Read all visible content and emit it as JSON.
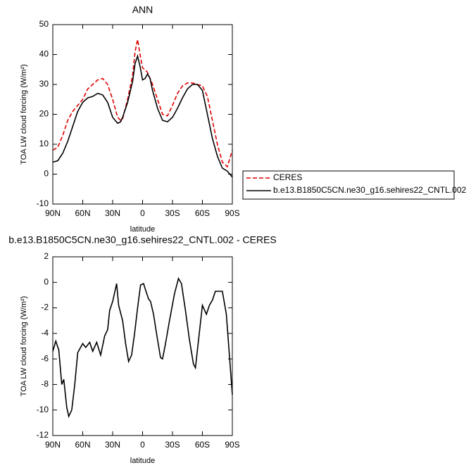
{
  "chart_data": [
    {
      "type": "line",
      "title": "ANN",
      "x_label": "latitude",
      "y_label": "TOA LW cloud forcing (W/m²)",
      "x": [
        90,
        85,
        80,
        75,
        70,
        65,
        60,
        55,
        50,
        45,
        40,
        35,
        30,
        25,
        22,
        20,
        15,
        10,
        7.5,
        5,
        2.5,
        0,
        -2.5,
        -5,
        -7.5,
        -10,
        -15,
        -20,
        -25,
        -30,
        -35,
        -40,
        -45,
        -50,
        -55,
        -60,
        -65,
        -70,
        -75,
        -80,
        -85,
        -90
      ],
      "series": [
        {
          "name": "CERES",
          "color": "#e00000",
          "line_style": "dashed",
          "values": [
            8,
            9,
            13,
            18,
            21,
            23,
            25,
            28.5,
            30,
            31.5,
            32,
            30,
            25,
            19,
            18,
            18.5,
            25,
            33,
            41,
            45,
            40,
            35.5,
            35,
            34,
            32,
            30,
            25,
            20,
            19.5,
            23,
            27,
            29.5,
            30.5,
            30.5,
            30,
            29.5,
            26,
            18,
            10,
            4,
            2.5,
            8
          ]
        },
        {
          "name": "b.e13.B1850C5CN.ne30_g16.sehires22_CNTL.002",
          "color": "#000000",
          "line_style": "solid",
          "values": [
            4,
            4.5,
            7,
            11,
            16,
            21,
            24,
            25.5,
            26,
            27,
            26.5,
            24,
            19,
            17,
            17.5,
            19,
            24,
            31,
            37,
            39.5,
            36,
            31.5,
            32,
            33.5,
            32,
            28,
            22,
            18,
            17.5,
            19,
            22,
            25.5,
            28.5,
            30,
            30,
            28,
            20,
            12,
            6,
            2,
            1,
            -1
          ]
        }
      ],
      "xlim": [
        90,
        -90
      ],
      "xticks": [
        {
          "value": 90,
          "label": "90N"
        },
        {
          "value": 60,
          "label": "60N"
        },
        {
          "value": 30,
          "label": "30N"
        },
        0,
        {
          "value": -30,
          "label": "30S"
        },
        {
          "value": -60,
          "label": "60S"
        },
        {
          "value": -90,
          "label": "90S"
        }
      ],
      "ylim": [
        -10,
        50
      ],
      "yticks": [
        -10,
        0,
        10,
        20,
        30,
        40,
        50
      ],
      "legend": "right"
    },
    {
      "type": "line",
      "title": "b.e13.B1850C5CN.ne30_g16.sehires22_CNTL.002 - CERES",
      "x_label": "latitude",
      "y_label": "TOA LW cloud forcing (W/m²)",
      "x": [
        90,
        87,
        84,
        81,
        79,
        76,
        74,
        71,
        68,
        65,
        60,
        57,
        53,
        50,
        46,
        42,
        38,
        35,
        33,
        30,
        26,
        24,
        20,
        17,
        14,
        11,
        8,
        5,
        2,
        -1,
        -3,
        -6,
        -8,
        -11,
        -14,
        -18,
        -20,
        -23,
        -27,
        -32,
        -36,
        -39,
        -43,
        -47,
        -51,
        -53,
        -58,
        -60,
        -64,
        -67,
        -70,
        -73,
        -76,
        -80,
        -84,
        -90
      ],
      "series": [
        {
          "name": null,
          "color": "#000000",
          "line_style": "solid",
          "values": [
            -5.4,
            -4.6,
            -5.3,
            -8,
            -7.6,
            -9.8,
            -10.5,
            -10,
            -8,
            -5.5,
            -4.8,
            -5.1,
            -4.7,
            -5.4,
            -4.7,
            -5.7,
            -4.2,
            -3.7,
            -2.2,
            -1.5,
            -0.1,
            -1.8,
            -3,
            -4.8,
            -6.2,
            -5.7,
            -4,
            -2,
            -0.2,
            -0.1,
            -0.6,
            -1.3,
            -1.5,
            -2.5,
            -4,
            -5.9,
            -6,
            -4.8,
            -3,
            -0.9,
            0.3,
            -0.1,
            -2.2,
            -4.5,
            -6.4,
            -6.7,
            -3.2,
            -1.8,
            -2.5,
            -1.8,
            -1.4,
            -0.7,
            -0.7,
            -0.7,
            -2.5,
            -8.8
          ]
        }
      ],
      "xlim": [
        90,
        -90
      ],
      "xticks": [
        {
          "value": 90,
          "label": "90N"
        },
        {
          "value": 60,
          "label": "60N"
        },
        {
          "value": 30,
          "label": "30N"
        },
        0,
        {
          "value": -30,
          "label": "30S"
        },
        {
          "value": -60,
          "label": "60S"
        },
        {
          "value": -90,
          "label": "90S"
        }
      ],
      "ylim": [
        -12,
        2
      ],
      "yticks": [
        -12,
        -10,
        -8,
        -6,
        -4,
        -2,
        0,
        2
      ]
    }
  ]
}
